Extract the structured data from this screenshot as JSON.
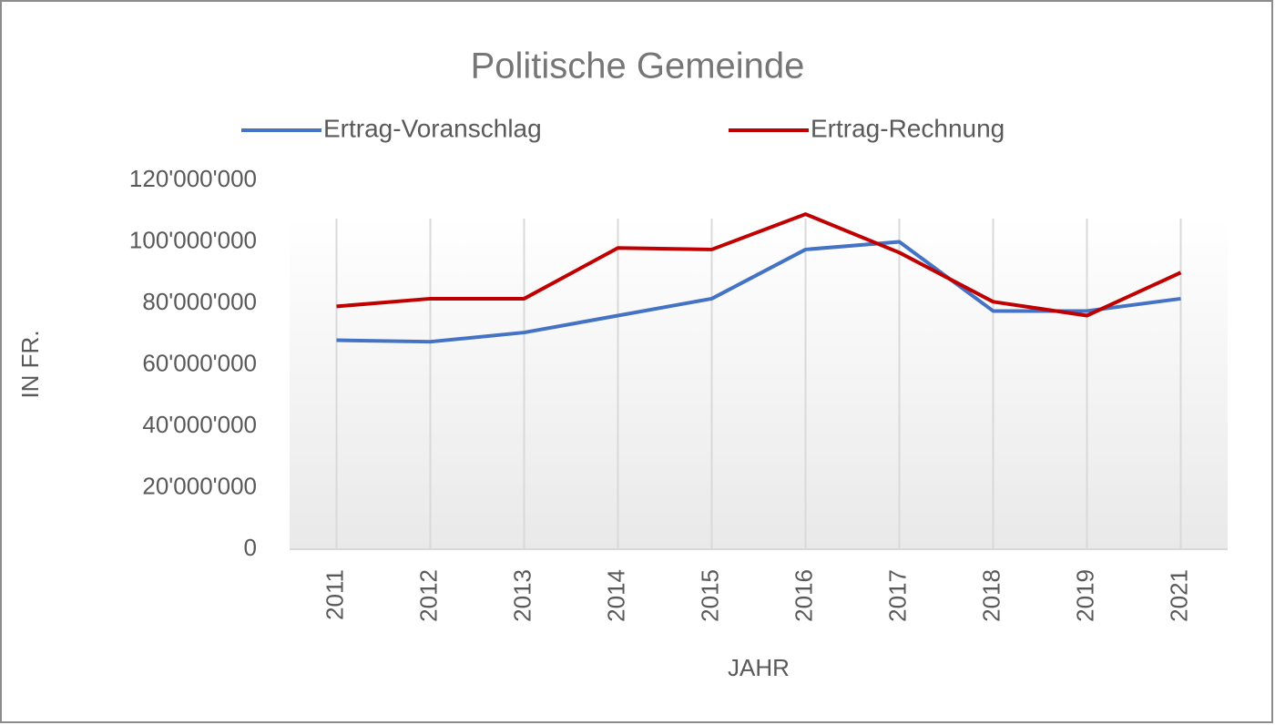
{
  "chart_data": {
    "type": "line",
    "title": "Politische  Gemeinde",
    "xlabel": "JAHR",
    "ylabel": "IN FR.",
    "categories": [
      "2011",
      "2012",
      "2013",
      "2014",
      "2015",
      "2016",
      "2017",
      "2018",
      "2019",
      "2021"
    ],
    "series": [
      {
        "name": "Ertrag-Voranschlag",
        "color": "#4472c4",
        "values": [
          68000000,
          67500000,
          70500000,
          76000000,
          81500000,
          97500000,
          100000000,
          77500000,
          77500000,
          81500000
        ]
      },
      {
        "name": "Ertrag-Rechnung",
        "color": "#c00000",
        "values": [
          79000000,
          81500000,
          81500000,
          98000000,
          97500000,
          109000000,
          96500000,
          80500000,
          76000000,
          90000000
        ]
      }
    ],
    "ylim": [
      0,
      120000000
    ],
    "yticks": [
      0,
      {
        "value": 20000000,
        "label": "20'000'000"
      },
      {
        "value": 40000000,
        "label": "40'000'000"
      },
      {
        "value": 60000000,
        "label": "60'000'000"
      },
      {
        "value": 80000000,
        "label": "80'000'000"
      },
      {
        "value": 100000000,
        "label": "100'000'000"
      },
      {
        "value": 120000000,
        "label": "120'000'000"
      }
    ],
    "grid": true,
    "legend": "top"
  }
}
